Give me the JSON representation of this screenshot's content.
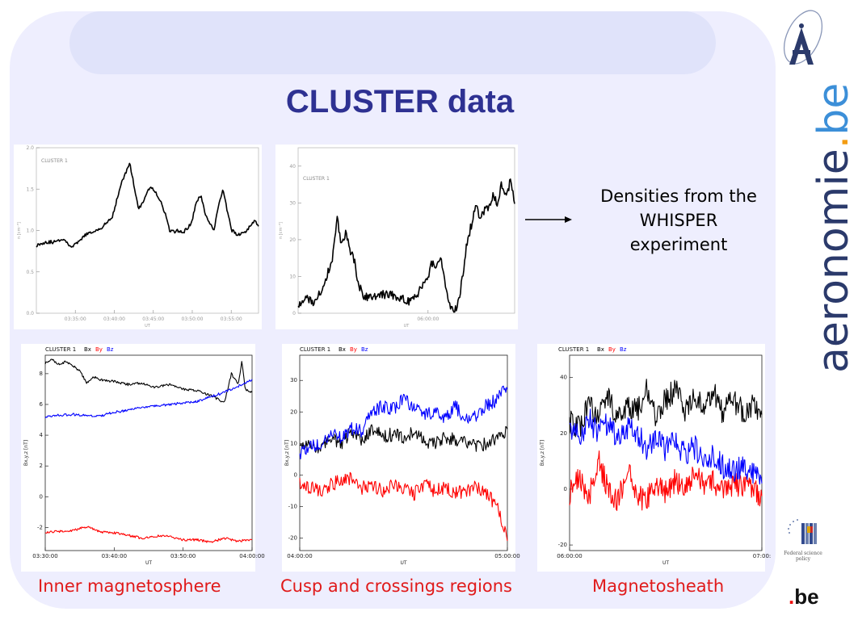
{
  "title": "CLUSTER data",
  "note": "Densities from the WHISPER experiment",
  "captions": [
    "Inner magnetosphere",
    "Cusp and crossings regions",
    "Magnetosheath"
  ],
  "branding": {
    "site_main": "aeronomie",
    "site_dot": ".",
    "site_tld": "be",
    "federal_text": "Federal science policy",
    "be_main": "be",
    "be_dot": "."
  },
  "colors": {
    "title": "#2e3192",
    "caption": "#e01a1a",
    "background": "#eeeefe",
    "Bx": "#000000",
    "By": "#ff0000",
    "Bz": "#0000ff"
  },
  "chart_data": [
    {
      "type": "line",
      "title": "CLUSTER 1",
      "xlabel": "UT",
      "ylabel": "n [cm⁻³]",
      "x_ticks": [
        "03:35:00",
        "03:40:00",
        "03:45:00",
        "03:50:00",
        "03:55:00"
      ],
      "y_ticks": [
        "0.0",
        "0.5",
        "1.0",
        "1.5",
        "2.0"
      ],
      "ylim": [
        0,
        2.0
      ],
      "xlim": [
        0,
        50
      ],
      "series": [
        {
          "color": "#000000",
          "x": [
            0,
            2,
            4,
            6,
            8,
            10,
            11,
            13,
            15,
            17,
            19,
            21,
            23,
            24,
            25,
            26,
            27,
            28,
            29,
            30,
            31,
            32,
            33,
            34,
            35,
            36,
            37,
            38,
            39,
            40,
            41,
            42,
            43,
            44,
            45,
            46,
            47,
            48,
            49,
            50
          ],
          "y": [
            0.82,
            0.86,
            0.86,
            0.9,
            0.8,
            0.88,
            0.95,
            0.98,
            1.05,
            1.15,
            1.55,
            1.82,
            1.25,
            1.35,
            1.48,
            1.52,
            1.45,
            1.35,
            1.2,
            1.0,
            0.98,
            1.0,
            0.98,
            1.02,
            1.1,
            1.35,
            1.42,
            1.2,
            1.1,
            1.0,
            1.3,
            1.5,
            1.22,
            1.0,
            0.96,
            0.95,
            0.98,
            1.05,
            1.12,
            1.05
          ]
        }
      ]
    },
    {
      "type": "line",
      "title": "CLUSTER 1",
      "xlabel": "UT",
      "ylabel": "n [cm⁻³]",
      "x_ticks": [
        "06:00:00"
      ],
      "y_ticks": [
        "0",
        "10",
        "20",
        "30",
        "40"
      ],
      "ylim": [
        0,
        45
      ],
      "xlim": [
        0,
        100
      ],
      "series": [
        {
          "color": "#000000",
          "x": [
            0,
            4,
            8,
            12,
            16,
            18,
            20,
            22,
            24,
            26,
            28,
            30,
            33,
            36,
            40,
            44,
            48,
            52,
            56,
            60,
            62,
            64,
            66,
            68,
            70,
            72,
            74,
            76,
            78,
            80,
            82,
            84,
            86,
            88,
            90,
            92,
            94,
            96,
            98,
            100
          ],
          "y": [
            2,
            4,
            3,
            8,
            15,
            26,
            19,
            22,
            17,
            14,
            8,
            5,
            4,
            5,
            5,
            5,
            4,
            3,
            6,
            10,
            14,
            12,
            15,
            8,
            2,
            0,
            3,
            10,
            19,
            24,
            30,
            26,
            28,
            29,
            32,
            30,
            35,
            31,
            36,
            30
          ]
        }
      ]
    },
    {
      "type": "line",
      "title": "CLUSTER 1",
      "legend": [
        "Bx",
        "By",
        "Bz"
      ],
      "xlabel": "UT",
      "ylabel": "Bx,y,z [nT]",
      "x_ticks": [
        "03:30:00",
        "03:40:00",
        "03:50:00",
        "04:00:00"
      ],
      "y_ticks": [
        "-2",
        "0",
        "2",
        "4",
        "6",
        "8"
      ],
      "ylim": [
        -3.5,
        9.2
      ],
      "xlim": [
        0,
        30
      ],
      "series": [
        {
          "name": "Bx",
          "color": "#000000",
          "x": [
            0,
            1,
            2,
            3,
            4,
            5,
            6,
            7,
            8,
            10,
            12,
            14,
            16,
            18,
            20,
            22,
            24,
            26,
            27,
            28,
            28.5,
            29,
            30
          ],
          "y": [
            8.7,
            8.9,
            8.6,
            8.8,
            8.5,
            8.2,
            7.4,
            7.8,
            7.6,
            7.5,
            7.3,
            7.4,
            7.1,
            7.3,
            7.0,
            6.9,
            6.6,
            6.1,
            8.0,
            7.3,
            8.8,
            7.0,
            6.8
          ]
        },
        {
          "name": "By",
          "color": "#ff0000",
          "x": [
            0,
            2,
            4,
            6,
            8,
            10,
            12,
            14,
            16,
            18,
            20,
            22,
            24,
            26,
            28,
            30
          ],
          "y": [
            -2.3,
            -2.25,
            -2.2,
            -1.95,
            -2.3,
            -2.35,
            -2.5,
            -2.7,
            -2.55,
            -2.6,
            -2.8,
            -2.8,
            -2.95,
            -2.7,
            -2.9,
            -2.75
          ]
        },
        {
          "name": "Bz",
          "color": "#0000ff",
          "x": [
            0,
            2,
            4,
            6,
            8,
            10,
            12,
            14,
            16,
            18,
            20,
            22,
            24,
            26,
            28,
            30
          ],
          "y": [
            5.2,
            5.3,
            5.35,
            5.3,
            5.25,
            5.5,
            5.6,
            5.8,
            5.9,
            6.0,
            6.1,
            6.2,
            6.5,
            6.8,
            7.2,
            7.6
          ]
        }
      ]
    },
    {
      "type": "line",
      "title": "CLUSTER 1",
      "legend": [
        "Bx",
        "By",
        "Bz"
      ],
      "xlabel": "UT",
      "ylabel": "Bx,y,z [nT]",
      "x_ticks": [
        "04:00:00",
        "05:00:00"
      ],
      "y_ticks": [
        "-20",
        "-10",
        "0",
        "10",
        "20",
        "30"
      ],
      "ylim": [
        -24,
        38
      ],
      "xlim": [
        0,
        100
      ],
      "series": [
        {
          "name": "Bx",
          "color": "#000000",
          "x": [
            0,
            5,
            10,
            15,
            20,
            25,
            30,
            35,
            40,
            45,
            50,
            55,
            60,
            65,
            70,
            75,
            80,
            85,
            90,
            95,
            100
          ],
          "y": [
            8,
            9,
            8,
            12,
            10,
            14,
            11,
            15,
            12,
            13,
            12,
            14,
            11,
            10,
            12,
            11,
            10,
            9,
            10,
            12,
            14
          ]
        },
        {
          "name": "By",
          "color": "#ff0000",
          "x": [
            0,
            5,
            10,
            15,
            20,
            25,
            30,
            35,
            40,
            45,
            50,
            55,
            60,
            65,
            70,
            75,
            80,
            85,
            90,
            95,
            100
          ],
          "y": [
            -3,
            -4,
            -5,
            -3,
            -2,
            -1,
            -4,
            -3,
            -5,
            -3,
            -4,
            -6,
            -3,
            -5,
            -4,
            -6,
            -5,
            -4,
            -6,
            -10,
            -20
          ]
        },
        {
          "name": "Bz",
          "color": "#0000ff",
          "x": [
            0,
            5,
            10,
            15,
            20,
            25,
            30,
            35,
            40,
            45,
            50,
            55,
            60,
            65,
            70,
            75,
            80,
            85,
            90,
            95,
            100
          ],
          "y": [
            7,
            9,
            10,
            13,
            12,
            15,
            14,
            20,
            22,
            21,
            24,
            22,
            19,
            20,
            18,
            22,
            17,
            19,
            22,
            24,
            28
          ]
        }
      ]
    },
    {
      "type": "line",
      "title": "CLUSTER 1",
      "legend": [
        "Bx",
        "By",
        "Bz"
      ],
      "xlabel": "UT",
      "ylabel": "Bx,y,z [nT]",
      "x_ticks": [
        "06:00:00",
        "07:00:"
      ],
      "y_ticks": [
        "-20",
        "0",
        "20",
        "40"
      ],
      "ylim": [
        -22,
        48
      ],
      "xlim": [
        0,
        100
      ],
      "series": [
        {
          "name": "Bx",
          "color": "#000000",
          "x": [
            0,
            5,
            10,
            15,
            20,
            25,
            30,
            35,
            40,
            45,
            50,
            55,
            60,
            65,
            70,
            75,
            80,
            85,
            90,
            95,
            100
          ],
          "y": [
            25,
            22,
            30,
            27,
            33,
            25,
            30,
            28,
            35,
            26,
            32,
            36,
            28,
            33,
            30,
            35,
            27,
            32,
            28,
            30,
            26
          ]
        },
        {
          "name": "By",
          "color": "#ff0000",
          "x": [
            0,
            5,
            10,
            15,
            20,
            25,
            30,
            35,
            40,
            45,
            50,
            55,
            60,
            65,
            70,
            75,
            80,
            85,
            90,
            95,
            100
          ],
          "y": [
            -2,
            5,
            -3,
            10,
            0,
            -5,
            8,
            -2,
            -4,
            2,
            -1,
            3,
            0,
            5,
            1,
            3,
            -2,
            2,
            1,
            0,
            -2
          ]
        },
        {
          "name": "Bz",
          "color": "#0000ff",
          "x": [
            0,
            5,
            10,
            15,
            20,
            25,
            30,
            35,
            40,
            45,
            50,
            55,
            60,
            65,
            70,
            75,
            80,
            85,
            90,
            95,
            100
          ],
          "y": [
            22,
            18,
            25,
            20,
            24,
            17,
            22,
            20,
            15,
            18,
            14,
            17,
            12,
            15,
            10,
            12,
            8,
            6,
            8,
            5,
            4
          ]
        }
      ]
    }
  ]
}
